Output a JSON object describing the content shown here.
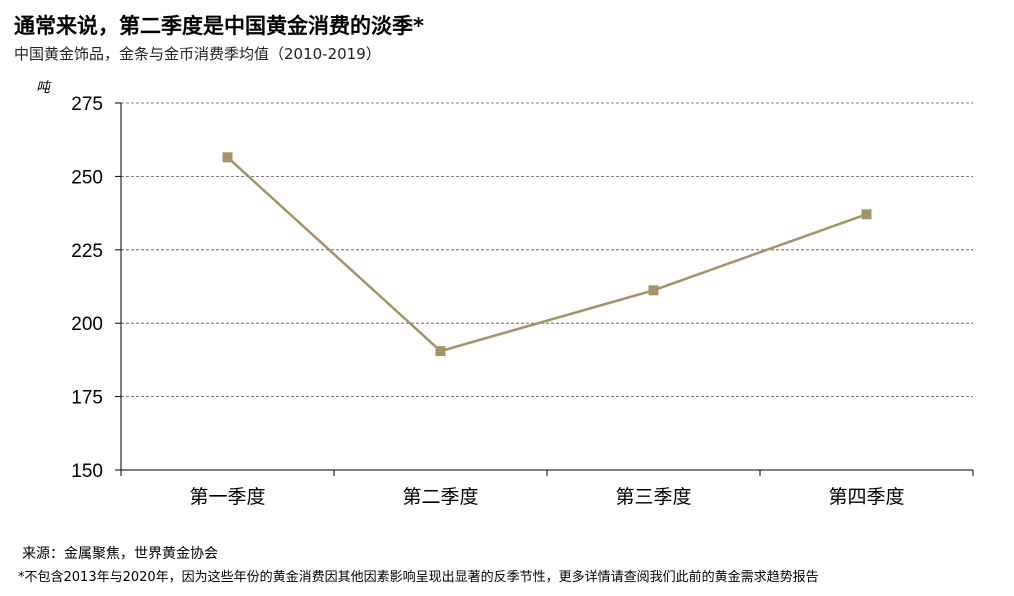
{
  "title": "通常来说，第二季度是中国黄金消费的淡季*",
  "subtitle": "中国黄金饰品，金条与金币消费季均值（2010-2019）",
  "source": "来源：金属聚焦，世界黄金协会",
  "footnote": "*不包含2013年与2020年，因为这些年份的黄金消费因其他因素影响呈现出显著的反季节性，更多详情请查阅我们此前的黄金需求趋势报告",
  "colors": {
    "line": "#a59366",
    "grid": "#555555",
    "axis": "#000000"
  },
  "chart_data": {
    "type": "line",
    "ylabel": "吨",
    "ylim": [
      150,
      275
    ],
    "yticks": [
      150,
      175,
      200,
      225,
      250,
      275
    ],
    "categories": [
      "第一季度",
      "第二季度",
      "第三季度",
      "第四季度"
    ],
    "grid": "horizontal dashed",
    "series": [
      {
        "values": [
          256.5,
          190.5,
          211.2,
          237.1
        ]
      }
    ]
  }
}
